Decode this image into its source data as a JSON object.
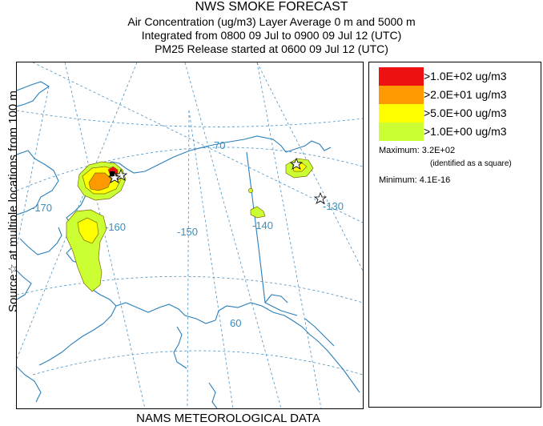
{
  "header": {
    "title": "NWS SMOKE FORECAST",
    "line1": "Air Concentration (ug/m3) Layer Average    0 m and  5000 m",
    "line2": "Integrated from 0800 09 Jul to 0900 09 Jul 12 (UTC)",
    "line3": "PM25 Release started at 0600 09 Jul 12 (UTC)"
  },
  "side_label": "Source☆ at multiple locations   from   100 m",
  "footer": "NAMS METEOROLOGICAL DATA",
  "map": {
    "lon_labels": [
      "-170",
      "-160",
      "-150",
      "-140",
      "-130"
    ],
    "lat_labels": [
      "70",
      "60"
    ],
    "colors": {
      "coast": "#2a7fba",
      "grid": "#4a90c2",
      "contour": "#7a6a00"
    }
  },
  "legend": {
    "items": [
      {
        "label": ">1.0E+02 ug/m3",
        "color": "#ee1111"
      },
      {
        "label": ">2.0E+01 ug/m3",
        "color": "#ff9900"
      },
      {
        "label": ">5.0E+00 ug/m3",
        "color": "#ffff00"
      },
      {
        "label": ">1.0E+00 ug/m3",
        "color": "#ccff33"
      }
    ],
    "maximum": "Maximum: 3.2E+02",
    "max_note": "(identified as a square)",
    "minimum": "Minimum: 4.1E-16"
  }
}
